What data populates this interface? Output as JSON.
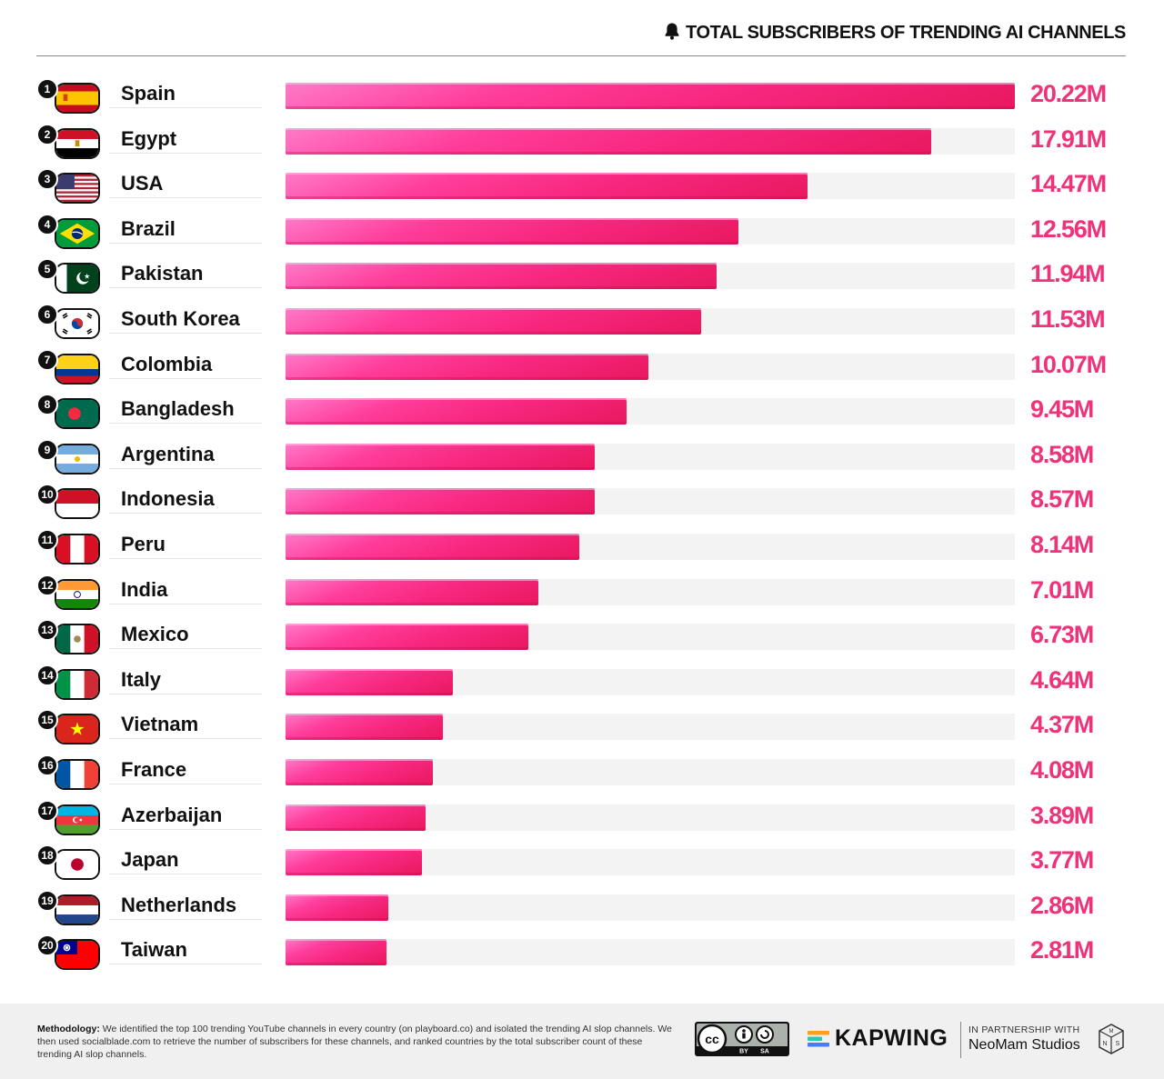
{
  "header": {
    "title": "TOTAL SUBSCRIBERS OF TRENDING AI CHANNELS",
    "icon": "bell-icon"
  },
  "colors": {
    "bar": "#f7277f",
    "value": "#f0327a",
    "track": "#f3f3f3"
  },
  "chart_data": {
    "type": "bar",
    "orientation": "horizontal",
    "title": "TOTAL SUBSCRIBERS OF TRENDING AI CHANNELS",
    "unit": "M",
    "xlim": [
      0,
      20.22
    ],
    "categories": [
      "Spain",
      "Egypt",
      "USA",
      "Brazil",
      "Pakistan",
      "South Korea",
      "Colombia",
      "Bangladesh",
      "Argentina",
      "Indonesia",
      "Peru",
      "India",
      "Mexico",
      "Italy",
      "Vietnam",
      "France",
      "Azerbaijan",
      "Japan",
      "Netherlands",
      "Taiwan"
    ],
    "values": [
      20.22,
      17.91,
      14.47,
      12.56,
      11.94,
      11.53,
      10.07,
      9.45,
      8.58,
      8.57,
      8.14,
      7.01,
      6.73,
      4.64,
      4.37,
      4.08,
      3.89,
      3.77,
      2.86,
      2.81
    ],
    "value_labels": [
      "20.22M",
      "17.91M",
      "14.47M",
      "12.56M",
      "11.94M",
      "11.53M",
      "10.07M",
      "9.45M",
      "8.58M",
      "8.57M",
      "8.14M",
      "7.01M",
      "6.73M",
      "4.64M",
      "4.37M",
      "4.08M",
      "3.89M",
      "3.77M",
      "2.86M",
      "2.81M"
    ],
    "ranks": [
      "1",
      "2",
      "3",
      "4",
      "5",
      "6",
      "7",
      "8",
      "9",
      "10",
      "11",
      "12",
      "13",
      "14",
      "15",
      "16",
      "17",
      "18",
      "19",
      "20"
    ],
    "flags": [
      "spain-flag-icon",
      "egypt-flag-icon",
      "usa-flag-icon",
      "brazil-flag-icon",
      "pakistan-flag-icon",
      "south-korea-flag-icon",
      "colombia-flag-icon",
      "bangladesh-flag-icon",
      "argentina-flag-icon",
      "indonesia-flag-icon",
      "peru-flag-icon",
      "india-flag-icon",
      "mexico-flag-icon",
      "italy-flag-icon",
      "vietnam-flag-icon",
      "france-flag-icon",
      "azerbaijan-flag-icon",
      "japan-flag-icon",
      "netherlands-flag-icon",
      "taiwan-flag-icon"
    ],
    "grid": false,
    "legend": "none"
  },
  "footer": {
    "methodology_label": "Methodology:",
    "methodology_text": " We identified the top 100 trending YouTube channels in every country (on playboard.co) and isolated the trending AI slop channels. We then used socialblade.com to retrieve the number of subscribers for these channels, and ranked countries by the total subscriber count of these trending AI slop channels.",
    "license": "cc-by-sa-badge",
    "kapwing": "KAPWING",
    "partner_small": "IN PARTNERSHIP WITH",
    "partner_name": "NeoMam Studios"
  }
}
